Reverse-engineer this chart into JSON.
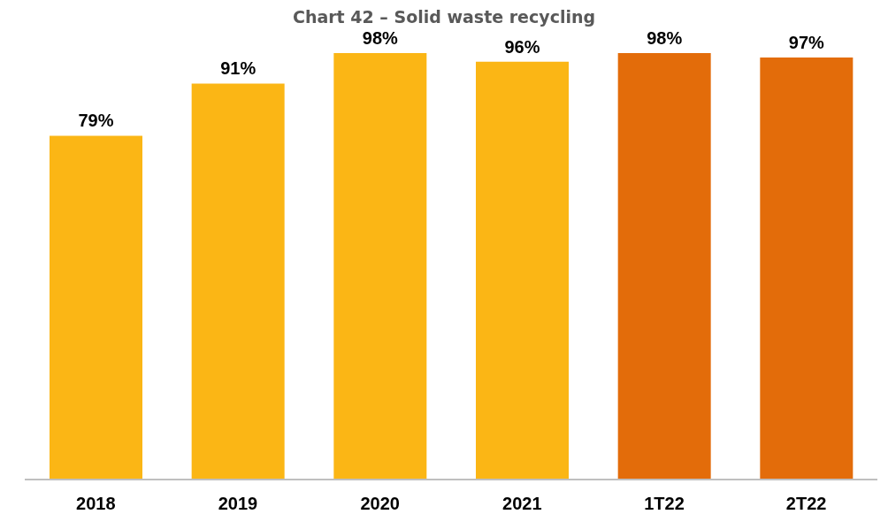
{
  "chart_data": {
    "type": "bar",
    "title": "Chart 42 – Solid waste recycling",
    "categories": [
      "2018",
      "2019",
      "2020",
      "2021",
      "1T22",
      "2T22"
    ],
    "values": [
      79,
      91,
      98,
      96,
      98,
      97
    ],
    "colors": [
      "#fbb615",
      "#fbb615",
      "#fbb615",
      "#fbb615",
      "#e36c0a",
      "#e36c0a"
    ],
    "value_labels": [
      "79%",
      "91%",
      "98%",
      "96%",
      "98%",
      "97%"
    ],
    "tick_labels": "x",
    "grid": false,
    "legend": false
  }
}
